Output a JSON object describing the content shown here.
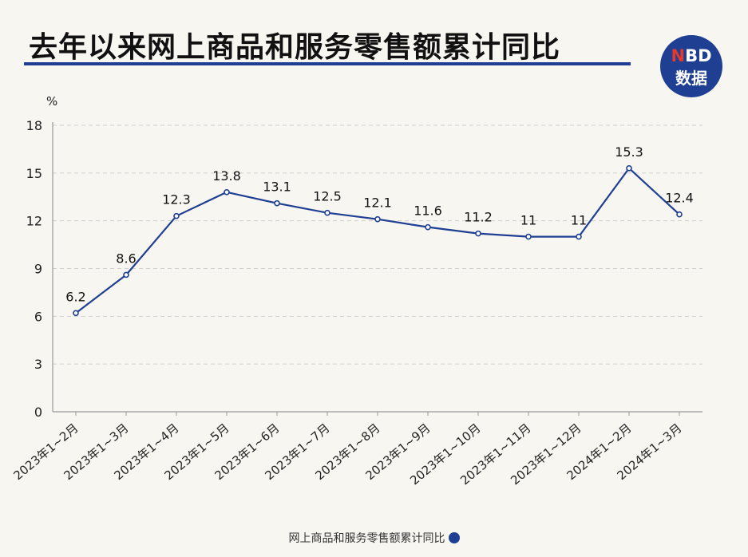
{
  "header": {
    "title": "去年以来网上商品和服务零售额累计同比",
    "logo_top": "NBD",
    "logo_bottom": "数据"
  },
  "colors": {
    "accent": "#1f3f93",
    "logo_red": "#e23a2c",
    "grid": "#cfcfcf"
  },
  "chart_data": {
    "type": "line",
    "title": "去年以来网上商品和服务零售额累计同比",
    "ylabel": "%",
    "xlabel": "",
    "ylim": [
      0,
      18
    ],
    "yticks": [
      0,
      3,
      6,
      9,
      12,
      15,
      18
    ],
    "grid": true,
    "legend_position": "bottom",
    "categories": [
      "2023年1~2月",
      "2023年1~3月",
      "2023年1~4月",
      "2023年1~5月",
      "2023年1~6月",
      "2023年1~7月",
      "2023年1~8月",
      "2023年1~9月",
      "2023年1~10月",
      "2023年1~11月",
      "2023年1~12月",
      "2024年1~2月",
      "2024年1~3月"
    ],
    "series": [
      {
        "name": "网上商品和服务零售额累计同比",
        "values": [
          6.2,
          8.6,
          12.3,
          13.8,
          13.1,
          12.5,
          12.1,
          11.6,
          11.2,
          11,
          11,
          15.3,
          12.4
        ],
        "labels": [
          "6.2",
          "8.6",
          "12.3",
          "13.8",
          "13.1",
          "12.5",
          "12.1",
          "11.6",
          "11.2",
          "11",
          "11",
          "15.3",
          "12.4"
        ]
      }
    ]
  }
}
